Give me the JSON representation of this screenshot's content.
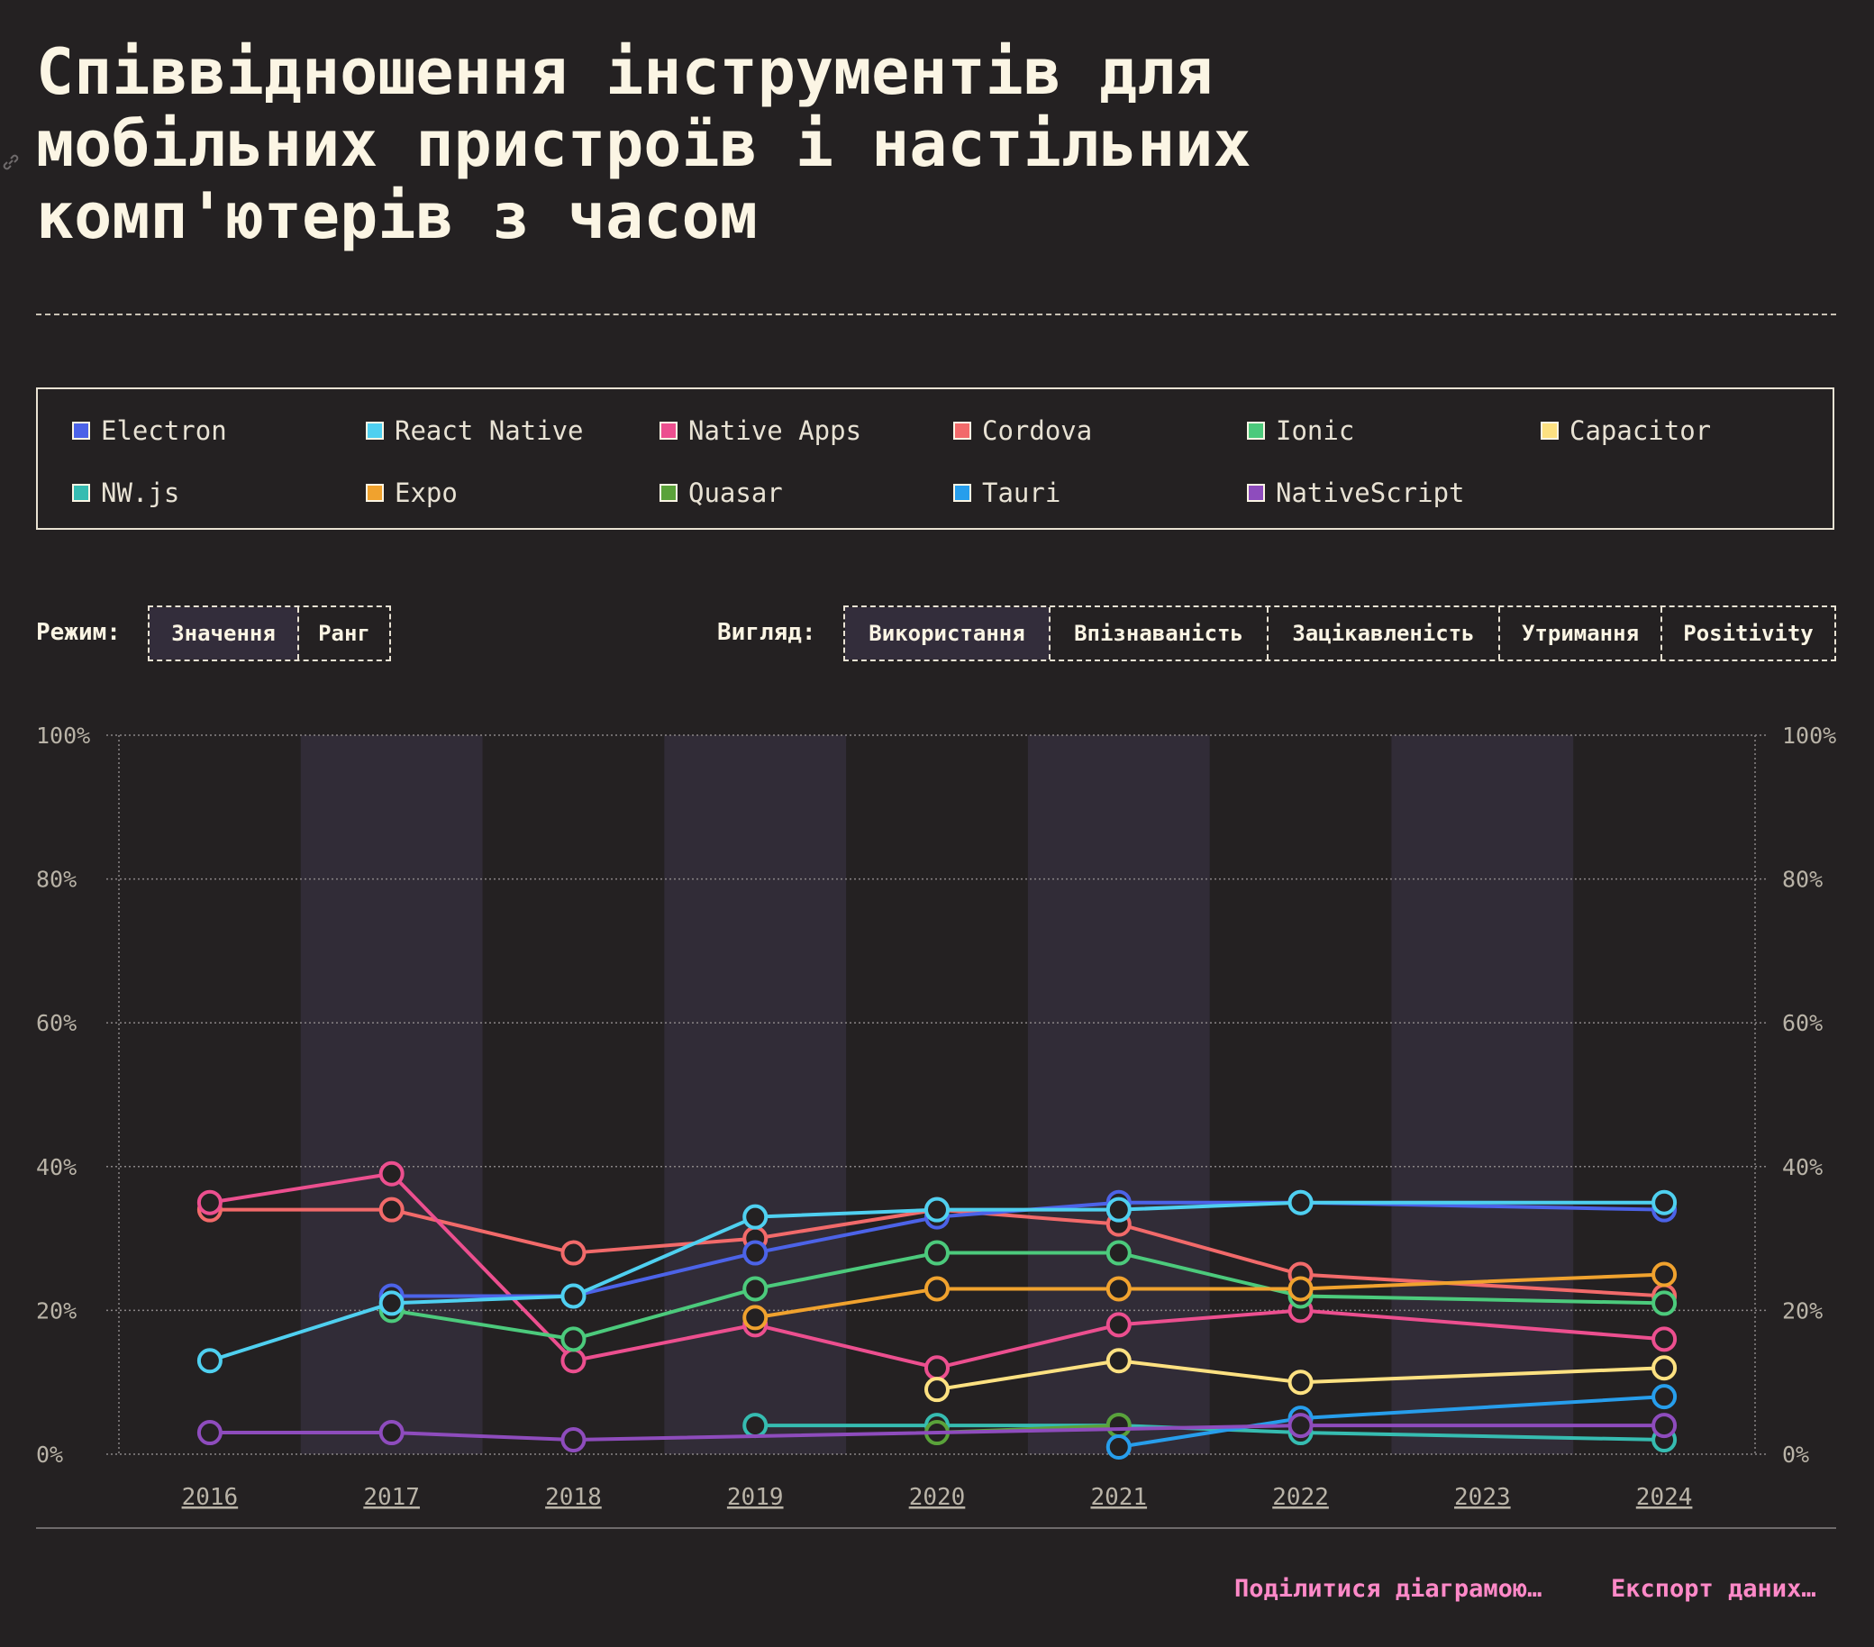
{
  "title": "Співвідношення інструментів для мобільних пристроїв і настільних комп'ютерів з часом",
  "legend": [
    {
      "label": "Electron",
      "color": "#4c63e8"
    },
    {
      "label": "React Native",
      "color": "#4fd0f0"
    },
    {
      "label": "Native Apps",
      "color": "#ec4f8f"
    },
    {
      "label": "Cordova",
      "color": "#f26a6a"
    },
    {
      "label": "Ionic",
      "color": "#4cca7c"
    },
    {
      "label": "Capacitor",
      "color": "#fde181"
    },
    {
      "label": "NW.js",
      "color": "#36bcb1"
    },
    {
      "label": "Expo",
      "color": "#f0a22e"
    },
    {
      "label": "Quasar",
      "color": "#5aa23a"
    },
    {
      "label": "Tauri",
      "color": "#279eec"
    },
    {
      "label": "NativeScript",
      "color": "#8e4cbd"
    }
  ],
  "controls": {
    "mode_label": "Режим:",
    "mode_options": [
      "Значення",
      "Ранг"
    ],
    "mode_selected": "Значення",
    "view_label": "Вигляд:",
    "view_options": [
      "Використання",
      "Впізнаваність",
      "Зацікавленість",
      "Утримання",
      "Positivity"
    ],
    "view_selected": "Використання"
  },
  "actions": {
    "share": "Поділитися діаграмою…",
    "export": "Експорт даних…"
  },
  "chart_data": {
    "type": "line",
    "x": [
      "2016",
      "2017",
      "2018",
      "2019",
      "2020",
      "2021",
      "2022",
      "2023",
      "2024"
    ],
    "y_ticks": [
      "0%",
      "20%",
      "40%",
      "60%",
      "80%",
      "100%"
    ],
    "ylim": [
      0,
      100
    ],
    "grid": true,
    "series": [
      {
        "name": "Cordova",
        "color": "#f26a6a",
        "values": [
          34,
          34,
          28,
          30,
          34,
          32,
          25,
          null,
          22
        ]
      },
      {
        "name": "Native Apps",
        "color": "#ec4f8f",
        "values": [
          35,
          39,
          13,
          18,
          12,
          18,
          20,
          null,
          16
        ]
      },
      {
        "name": "Ionic",
        "color": "#4cca7c",
        "values": [
          null,
          20,
          16,
          23,
          28,
          28,
          22,
          null,
          21
        ]
      },
      {
        "name": "Expo",
        "color": "#f0a22e",
        "values": [
          null,
          null,
          null,
          19,
          23,
          23,
          23,
          null,
          25
        ]
      },
      {
        "name": "Capacitor",
        "color": "#fde181",
        "values": [
          null,
          null,
          null,
          null,
          9,
          13,
          10,
          null,
          12
        ]
      },
      {
        "name": "NW.js",
        "color": "#36bcb1",
        "values": [
          null,
          null,
          null,
          4,
          4,
          4,
          3,
          null,
          2
        ]
      },
      {
        "name": "Quasar",
        "color": "#5aa23a",
        "values": [
          null,
          null,
          null,
          null,
          3,
          4,
          null,
          null,
          null
        ]
      },
      {
        "name": "Tauri",
        "color": "#279eec",
        "values": [
          null,
          null,
          null,
          null,
          null,
          1,
          5,
          null,
          8
        ]
      },
      {
        "name": "NativeScript",
        "color": "#8e4cbd",
        "values": [
          3,
          3,
          2,
          null,
          null,
          null,
          4,
          null,
          4
        ]
      },
      {
        "name": "Electron",
        "color": "#4c63e8",
        "values": [
          null,
          22,
          22,
          28,
          33,
          35,
          35,
          null,
          34
        ]
      },
      {
        "name": "React Native",
        "color": "#4fd0f0",
        "values": [
          13,
          21,
          22,
          33,
          34,
          34,
          35,
          null,
          35
        ]
      }
    ]
  }
}
